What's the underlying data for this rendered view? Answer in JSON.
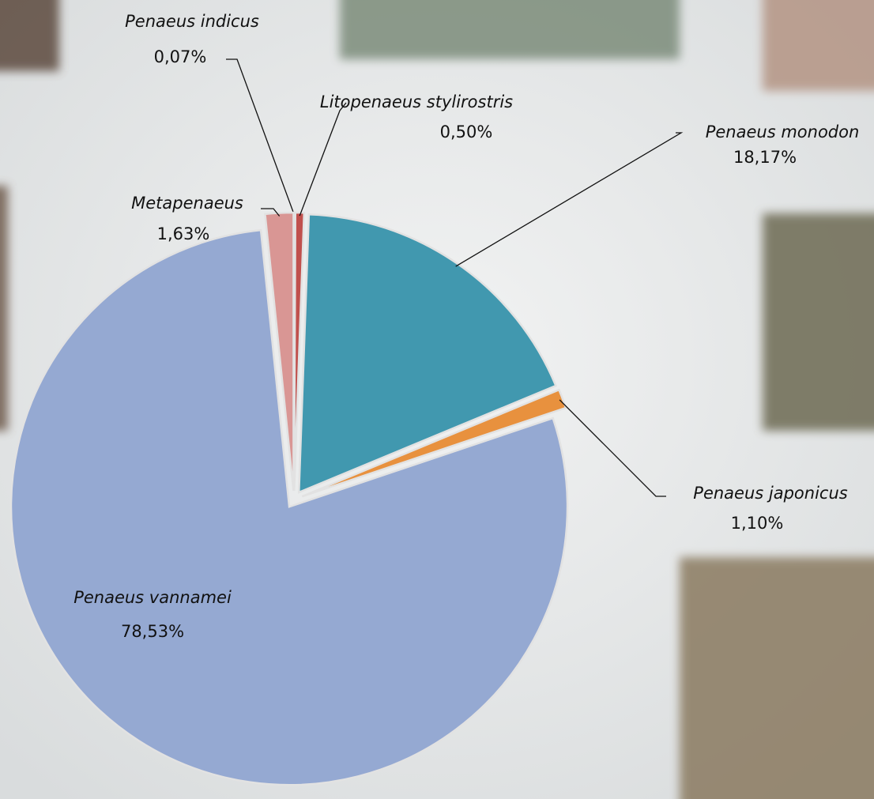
{
  "chart_data": {
    "type": "pie",
    "categories": [
      "Penaeus indicus",
      "Litopenaeus stylirostris",
      "Penaeus monodon",
      "Penaeus japonicus",
      "Penaeus vannamei",
      "Metapenaeus"
    ],
    "values": [
      0.07,
      0.5,
      18.17,
      1.1,
      78.53,
      1.63
    ],
    "value_labels": [
      "0,07%",
      "0,50%",
      "18,17%",
      "1,10%",
      "78,53%",
      "1,63%"
    ],
    "colors": [
      "#4f81bd",
      "#c0504d",
      "#4198af",
      "#e8913e",
      "#95a9d2",
      "#d99694"
    ]
  }
}
